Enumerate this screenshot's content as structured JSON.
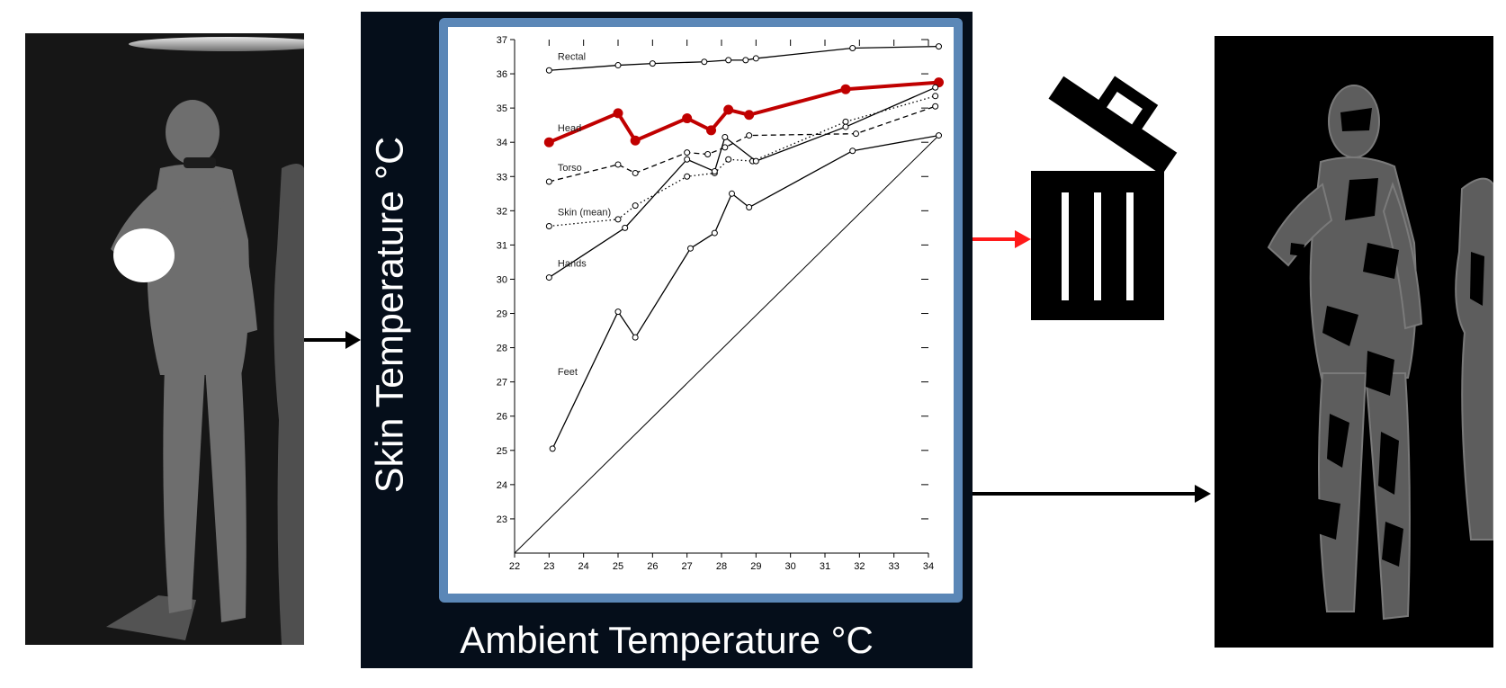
{
  "diagram": {
    "arrow_colors": {
      "default": "#000000",
      "discard": "#ff1a1a"
    },
    "panel_color": "#050e1a",
    "frame_color": "#5b87b7",
    "icons": [
      "thermal-image-input",
      "trash-icon",
      "thermal-image-output"
    ]
  },
  "chart_data": {
    "type": "line",
    "xlabel": "Ambient Temperature °C",
    "ylabel": "Skin Temperature °C",
    "xlim": [
      22,
      34
    ],
    "ylim": [
      22,
      37
    ],
    "xticks": [
      22,
      23,
      24,
      25,
      26,
      27,
      28,
      29,
      30,
      31,
      32,
      33,
      34
    ],
    "yticks": [
      23,
      24,
      25,
      26,
      27,
      28,
      29,
      30,
      31,
      32,
      33,
      34,
      35,
      36,
      37
    ],
    "series": [
      {
        "name": "Rectal",
        "style": "solid",
        "color": "#000000",
        "highlight": false,
        "x": [
          23,
          25,
          26,
          27.5,
          28.2,
          28.7,
          29,
          31.8,
          34.3
        ],
        "y": [
          36.1,
          36.25,
          36.3,
          36.35,
          36.4,
          36.4,
          36.45,
          36.75,
          36.8
        ]
      },
      {
        "name": "Head",
        "style": "solid",
        "color": "#c00000",
        "highlight": true,
        "x": [
          23,
          25,
          25.5,
          27,
          27.7,
          28.2,
          28.8,
          31.6,
          34.3
        ],
        "y": [
          34,
          34.85,
          34.05,
          34.7,
          34.35,
          34.95,
          34.8,
          35.55,
          35.75
        ]
      },
      {
        "name": "Torso",
        "style": "dashed",
        "color": "#000000",
        "highlight": false,
        "x": [
          23,
          25,
          25.5,
          27,
          27.6,
          28.1,
          28.8,
          31.9,
          34.2
        ],
        "y": [
          32.85,
          33.35,
          33.1,
          33.7,
          33.65,
          33.85,
          34.2,
          34.25,
          35.05
        ]
      },
      {
        "name": "Skin (mean)",
        "style": "dotted",
        "color": "#000000",
        "highlight": false,
        "x": [
          23,
          25,
          25.5,
          27,
          27.8,
          28.2,
          28.9,
          31.6,
          34.2
        ],
        "y": [
          31.55,
          31.75,
          32.15,
          33,
          33.1,
          33.5,
          33.45,
          34.6,
          35.35
        ]
      },
      {
        "name": "Hands",
        "style": "solid",
        "color": "#000000",
        "highlight": false,
        "x": [
          23,
          25.2,
          27,
          27.8,
          28.1,
          29,
          31.6,
          34.2
        ],
        "y": [
          30.05,
          31.5,
          33.5,
          33.15,
          34.15,
          33.45,
          34.45,
          35.6
        ]
      },
      {
        "name": "Feet",
        "style": "solid",
        "color": "#000000",
        "highlight": false,
        "x": [
          23.1,
          25,
          25.5,
          27.1,
          27.8,
          28.3,
          28.8,
          31.8,
          34.3
        ],
        "y": [
          25.05,
          29.05,
          28.3,
          30.9,
          31.35,
          32.5,
          32.1,
          33.75,
          34.2
        ]
      }
    ],
    "reference_line": {
      "x": [
        22,
        34.3
      ],
      "y": [
        22,
        34.2
      ]
    }
  }
}
